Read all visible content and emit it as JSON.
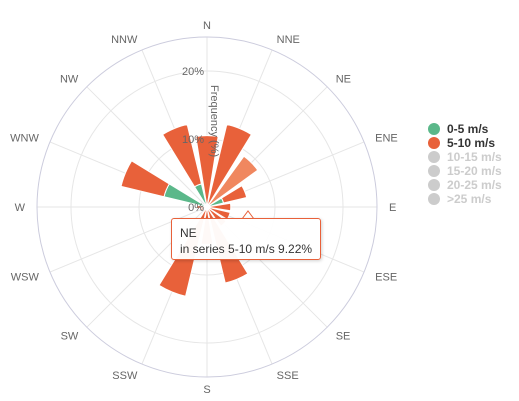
{
  "chart_data": {
    "type": "wind-rose",
    "title": "",
    "directions": [
      "N",
      "NNE",
      "NE",
      "ENE",
      "E",
      "ESE",
      "SE",
      "SSE",
      "S",
      "SSW",
      "SW",
      "WSW",
      "W",
      "WNW",
      "NW",
      "NNW"
    ],
    "radial_axis": {
      "title": "Frequency (%)",
      "ticks": [
        "0%",
        "10%",
        "20%"
      ],
      "tick_values": [
        0,
        10,
        20
      ],
      "max": 25
    },
    "series": [
      {
        "name": "0-5 m/s",
        "color": "#5bb88a",
        "visible": true,
        "values": [
          0,
          0,
          0,
          2.5,
          0,
          0,
          0,
          0,
          0,
          0,
          0,
          0,
          0,
          6.5,
          0,
          3.5
        ]
      },
      {
        "name": "5-10 m/s",
        "color": "#e8613a",
        "visible": true,
        "values": [
          10.5,
          12.5,
          9.22,
          3.5,
          3.5,
          3.5,
          3.5,
          11.5,
          5.5,
          13.5,
          0.5,
          1.0,
          1.5,
          6.5,
          0.5,
          9.0
        ]
      },
      {
        "name": "10-15 m/s",
        "color": "#cccccc",
        "visible": false,
        "values": []
      },
      {
        "name": "15-20 m/s",
        "color": "#cccccc",
        "visible": false,
        "values": []
      },
      {
        "name": "20-25 m/s",
        "color": "#cccccc",
        "visible": false,
        "values": []
      },
      {
        "name": ">25 m/s",
        "color": "#cccccc",
        "visible": false,
        "values": []
      }
    ],
    "highlighted": {
      "series_index": 1,
      "direction_index": 2
    },
    "legend": {
      "position": "right"
    },
    "grid": true
  },
  "tooltip": {
    "title": "NE",
    "text": "in series 5-10 m/s 9.22%"
  },
  "colors": {
    "gridline": "#e6e6e6",
    "pane_border": "#ccccdd",
    "label": "#666666",
    "highlight": "#f0875f"
  }
}
